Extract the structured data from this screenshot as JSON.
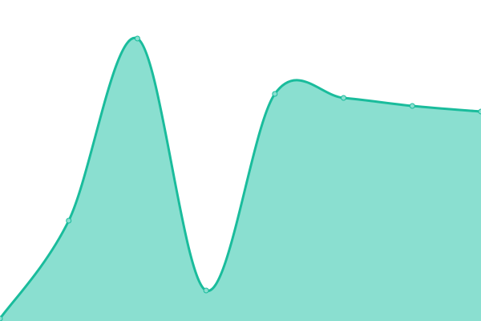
{
  "chart_data": {
    "type": "area",
    "title": "",
    "xlabel": "",
    "ylabel": "",
    "x": [
      0,
      1,
      2,
      3,
      4,
      5,
      6,
      7
    ],
    "series": [
      {
        "values": [
          3,
          125,
          352,
          38,
          283,
          278,
          268,
          261
        ]
      }
    ],
    "ylim": [
      0,
      400
    ],
    "grid": false,
    "legend": "none",
    "curve": "smooth",
    "colors": {
      "line": "#1abc9c",
      "fill": "#8adfd0",
      "point": "#8adfd0"
    }
  }
}
